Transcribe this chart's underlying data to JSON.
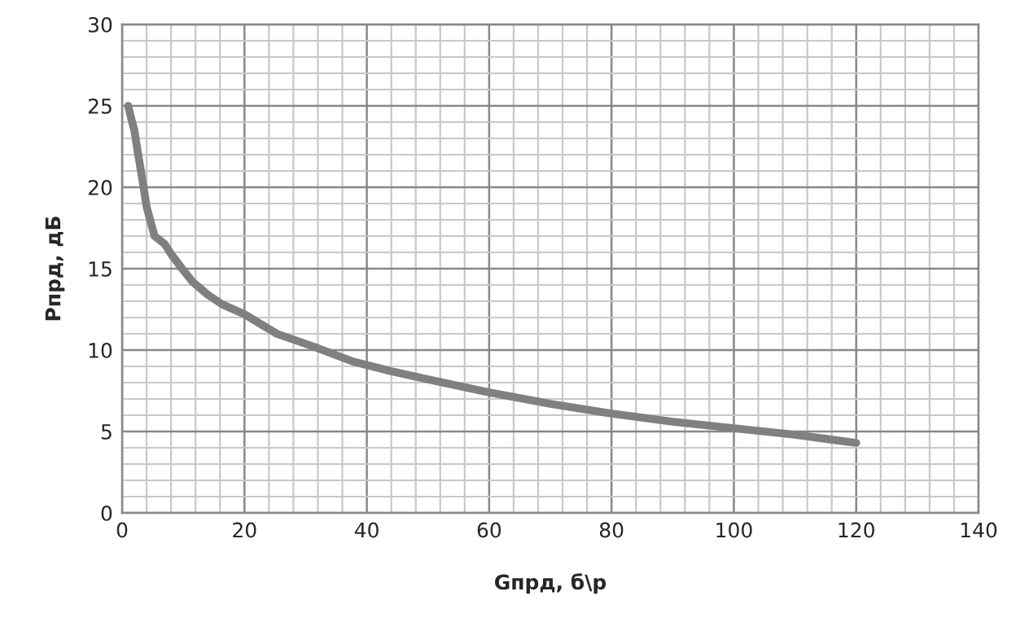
{
  "chart_data": {
    "type": "line",
    "xlabel": "Gпрд, б\\р",
    "ylabel": "Pпрд, дБ",
    "series": [
      {
        "color": "#808080",
        "x": [
          1,
          1.5,
          2,
          2.5,
          3.3,
          4,
          5.3,
          6,
          7,
          8,
          9.8,
          11.5,
          14,
          16.4,
          20,
          25.3,
          31.4,
          37.7,
          44,
          50,
          60,
          70,
          80,
          90,
          100,
          110,
          120
        ],
        "values": [
          25,
          24.2,
          23.5,
          22.3,
          20.5,
          18.8,
          17.0,
          16.8,
          16.5,
          15.9,
          15.0,
          14.2,
          13.4,
          12.8,
          12.2,
          11.0,
          10.2,
          9.3,
          8.7,
          8.2,
          7.4,
          6.7,
          6.1,
          5.6,
          5.2,
          4.8,
          4.3
        ]
      }
    ],
    "xlim": [
      0,
      140
    ],
    "xticks": [
      0,
      20,
      40,
      60,
      80,
      100,
      120,
      140
    ],
    "ylim": [
      0,
      30
    ],
    "yticks": [
      0,
      5,
      10,
      15,
      20,
      25,
      30
    ],
    "grid": true
  }
}
